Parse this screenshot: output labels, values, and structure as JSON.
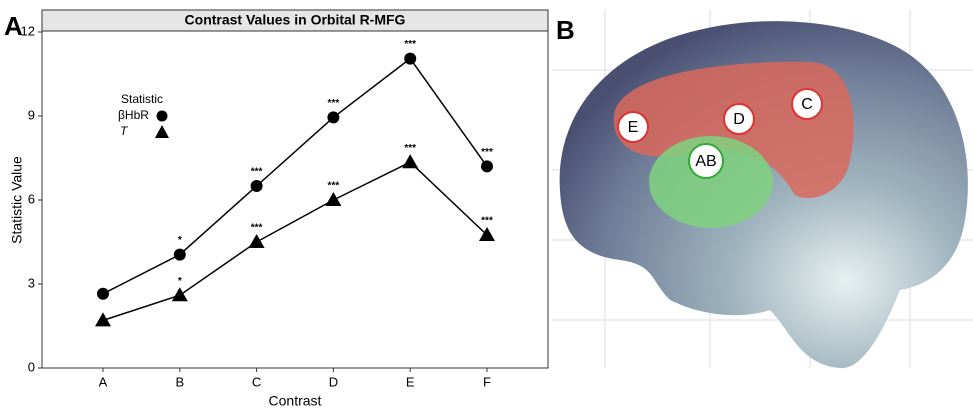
{
  "chart_data": {
    "type": "line",
    "panel_label": "A",
    "title": "Contrast Values in Orbital R-MFG",
    "x_label": "Contrast",
    "y_label": "Statistic Value",
    "categories": [
      "A",
      "B",
      "C",
      "D",
      "E",
      "F"
    ],
    "legend_title": "Statistic",
    "series": [
      {
        "name": "βHbR",
        "color": "#000000",
        "marker": "circle",
        "values": [
          2.65,
          4.05,
          6.5,
          8.95,
          11.05,
          7.2
        ],
        "significance": [
          null,
          "*",
          "***",
          "***",
          "***",
          "***"
        ]
      },
      {
        "name": "T",
        "color": "#000000",
        "marker": "triangle",
        "values": [
          1.7,
          2.6,
          4.5,
          6.0,
          7.35,
          4.75
        ],
        "significance": [
          null,
          "*",
          "***",
          "***",
          "***",
          "***"
        ]
      }
    ],
    "ylim": [
      0,
      12
    ],
    "yticks": [
      0,
      3,
      6,
      9,
      12
    ],
    "grid": false
  },
  "brain_panel": {
    "label": "B",
    "regions": [
      "E",
      "D",
      "C",
      "AB"
    ]
  }
}
